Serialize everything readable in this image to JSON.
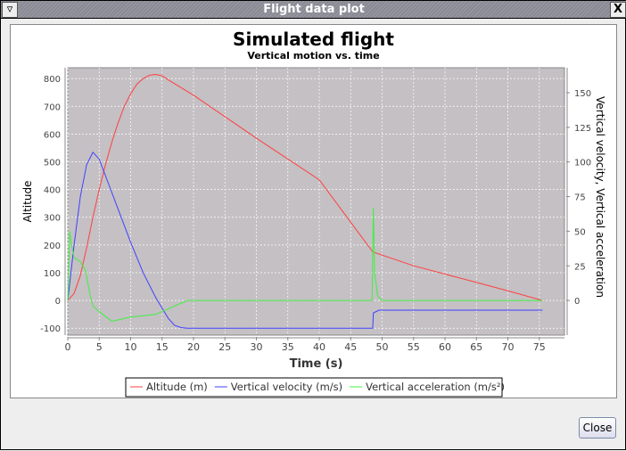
{
  "window": {
    "title": "Flight data plot",
    "close_button": "Close"
  },
  "chart_data": {
    "type": "line",
    "title": "Simulated flight",
    "subtitle": "Vertical motion vs. time",
    "xlabel": "Time (s)",
    "ylabel_left": "Altitude",
    "ylabel_right": "Vertical velocity, Vertical acceleration",
    "xlim": [
      0,
      79
    ],
    "ylim_left": [
      -125,
      839
    ],
    "ylim_right": [
      -25,
      168
    ],
    "xticks": [
      0,
      5,
      10,
      15,
      20,
      25,
      30,
      35,
      40,
      45,
      50,
      55,
      60,
      65,
      70,
      75
    ],
    "yticks_left": [
      -100,
      0,
      100,
      200,
      300,
      400,
      500,
      600,
      700,
      800
    ],
    "yticks_right": [
      0,
      25,
      50,
      75,
      100,
      125,
      150
    ],
    "grid": true,
    "legend_placement": "bottom",
    "series": [
      {
        "name": "Altitude (m)",
        "axis": "left",
        "color": "#ff4040",
        "x": [
          0,
          1,
          2,
          3,
          4,
          5,
          6,
          7,
          8,
          9,
          10,
          11,
          12,
          13,
          14,
          15,
          16,
          20,
          30,
          40,
          48.5,
          55,
          60,
          65,
          70,
          75.5
        ],
        "y": [
          0,
          25,
          90,
          190,
          300,
          400,
          490,
          570,
          640,
          700,
          745,
          780,
          800,
          812,
          815,
          810,
          795,
          740,
          585,
          435,
          175,
          125,
          95,
          65,
          35,
          0
        ]
      },
      {
        "name": "Vertical velocity (m/s)",
        "axis": "right",
        "color": "#4040ff",
        "x": [
          0,
          1,
          2,
          3,
          4,
          5,
          6,
          8,
          10,
          12,
          14,
          16,
          17,
          18,
          19,
          48.5,
          48.6,
          49.5,
          75.5
        ],
        "y": [
          0,
          40,
          75,
          98,
          107,
          102,
          90,
          66,
          42,
          20,
          2,
          -13,
          -18,
          -19.5,
          -20,
          -20,
          -9,
          -7,
          -7
        ]
      },
      {
        "name": "Vertical acceleration (m/s²)",
        "axis": "right",
        "color": "#40f040",
        "x": [
          0,
          0.3,
          0.6,
          1,
          2,
          2.8,
          3.5,
          4,
          5,
          7,
          10,
          14,
          16,
          18,
          19,
          20,
          48.4,
          48.6,
          48.8,
          49.3,
          50,
          75.5
        ],
        "y": [
          0,
          50,
          40,
          31,
          28,
          22,
          5,
          -4,
          -8,
          -15,
          -12,
          -10,
          -6,
          -2,
          0,
          0,
          0,
          67,
          20,
          3,
          0,
          0
        ]
      }
    ]
  }
}
